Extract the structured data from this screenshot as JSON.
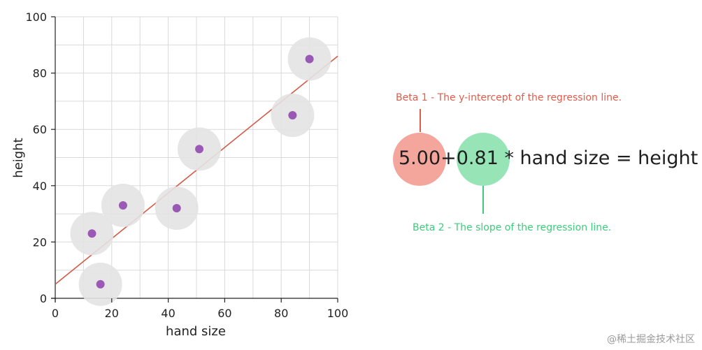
{
  "chart_data": {
    "type": "scatter",
    "xlabel": "hand size",
    "ylabel": "height",
    "xlim": [
      0,
      100
    ],
    "ylim": [
      0,
      100
    ],
    "x_ticks": [
      "0",
      "20",
      "40",
      "60",
      "80",
      "100"
    ],
    "y_ticks": [
      "0",
      "20",
      "40",
      "60",
      "80",
      "100"
    ],
    "grid": true,
    "points": [
      {
        "x": 13,
        "y": 23
      },
      {
        "x": 16,
        "y": 5
      },
      {
        "x": 24,
        "y": 33
      },
      {
        "x": 43,
        "y": 32
      },
      {
        "x": 51,
        "y": 53
      },
      {
        "x": 84,
        "y": 65
      },
      {
        "x": 90,
        "y": 85
      }
    ],
    "regression_line": {
      "intercept": 5.0,
      "slope": 0.81
    }
  },
  "colors": {
    "point": "#9b59b6",
    "halo": "#e3e3e3",
    "line": "#d25a46",
    "beta1": "#e15c4a",
    "beta1_circle": "#f4a59c",
    "beta2": "#3dcc7a",
    "beta2_circle": "#97e4b6"
  },
  "equation": {
    "beta1_value": "5.00",
    "plus": "+",
    "beta2_value": "0.81",
    "rest": "* hand size = height",
    "beta1_note": "Beta 1 - The y-intercept of the regression line.",
    "beta2_note": "Beta 2 - The slope of the regression line."
  },
  "watermark": "@稀土掘金技术社区"
}
